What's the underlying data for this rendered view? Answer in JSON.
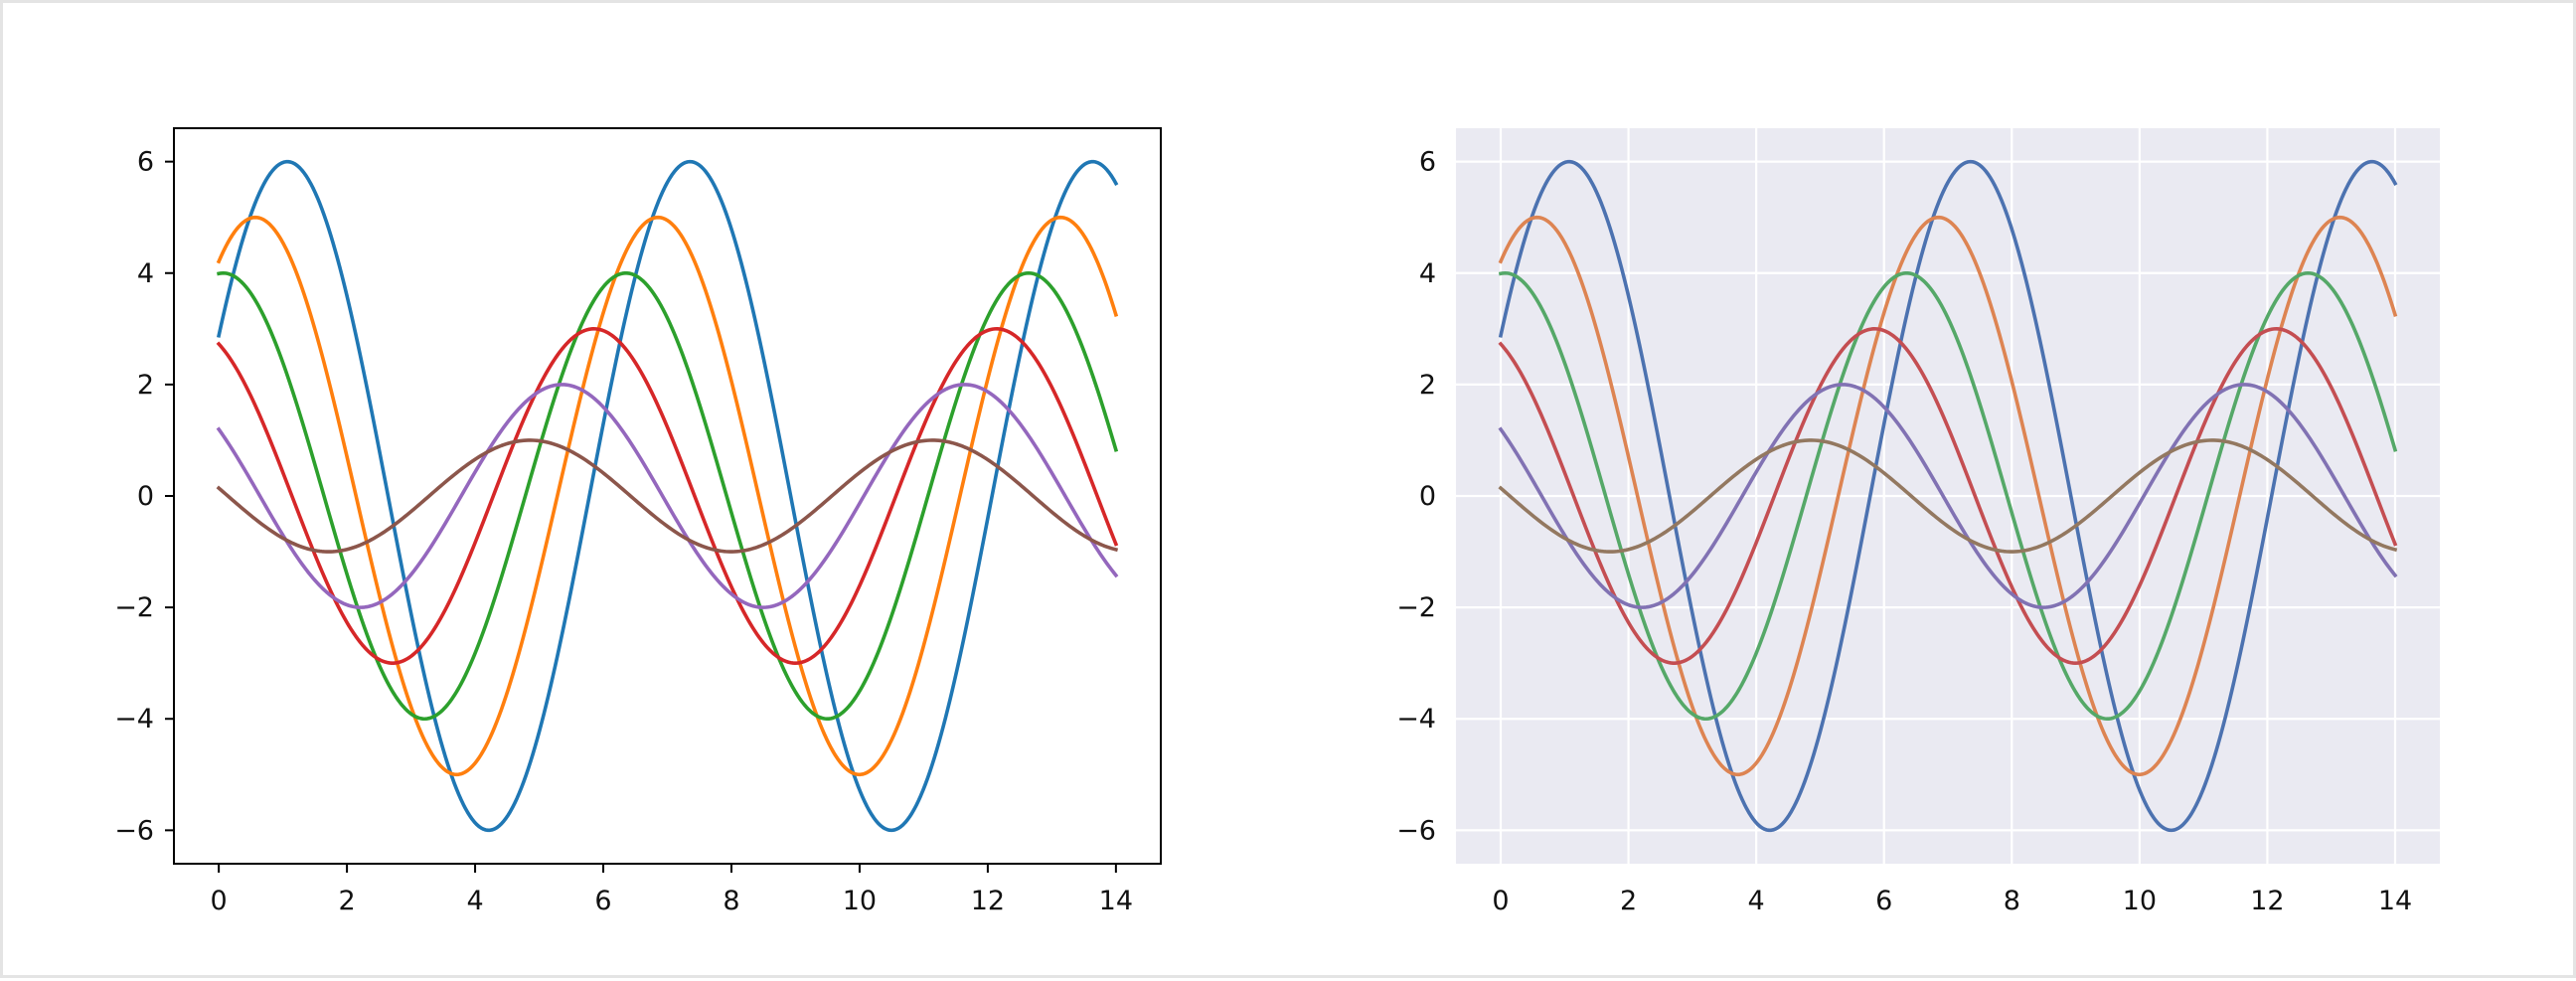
{
  "chart_data": [
    {
      "type": "line",
      "style": "classic",
      "frame": "black box",
      "background": "#ffffff",
      "grid": false,
      "xlim": [
        -0.7,
        14.7
      ],
      "ylim": [
        -6.6,
        6.6
      ],
      "xticks": [
        0,
        2,
        4,
        6,
        8,
        10,
        12,
        14
      ],
      "xtick_labels": [
        "0",
        "2",
        "4",
        "6",
        "8",
        "10",
        "12",
        "14"
      ],
      "yticks": [
        -6,
        -4,
        -2,
        0,
        2,
        4,
        6
      ],
      "ytick_labels": [
        "−6",
        "−4",
        "−2",
        "0",
        "2",
        "4",
        "6"
      ],
      "x_domain": [
        0,
        14
      ],
      "series": [
        {
          "formula": "sin(x + 0.5) * 6",
          "amplitude": 6,
          "phase": 0.5,
          "color": "#1f77b4"
        },
        {
          "formula": "sin(x + 1.0) * 5",
          "amplitude": 5,
          "phase": 1.0,
          "color": "#ff7f0e"
        },
        {
          "formula": "sin(x + 1.5) * 4",
          "amplitude": 4,
          "phase": 1.5,
          "color": "#2ca02c"
        },
        {
          "formula": "sin(x + 2.0) * 3",
          "amplitude": 3,
          "phase": 2.0,
          "color": "#d62728"
        },
        {
          "formula": "sin(x + 2.5) * 2",
          "amplitude": 2,
          "phase": 2.5,
          "color": "#9467bd"
        },
        {
          "formula": "sin(x + 3.0) * 1",
          "amplitude": 1,
          "phase": 3.0,
          "color": "#8c564b"
        }
      ]
    },
    {
      "type": "line",
      "style": "seaborn darkgrid",
      "frame": "none",
      "background": "#eaeaf2",
      "grid": true,
      "grid_color": "#ffffff",
      "xlim": [
        -0.7,
        14.7
      ],
      "ylim": [
        -6.6,
        6.6
      ],
      "xticks": [
        0,
        2,
        4,
        6,
        8,
        10,
        12,
        14
      ],
      "xtick_labels": [
        "0",
        "2",
        "4",
        "6",
        "8",
        "10",
        "12",
        "14"
      ],
      "yticks": [
        -6,
        -4,
        -2,
        0,
        2,
        4,
        6
      ],
      "ytick_labels": [
        "−6",
        "−4",
        "−2",
        "0",
        "2",
        "4",
        "6"
      ],
      "x_domain": [
        0,
        14
      ],
      "series": [
        {
          "formula": "sin(x + 0.5) * 6",
          "amplitude": 6,
          "phase": 0.5,
          "color": "#4c72b0"
        },
        {
          "formula": "sin(x + 1.0) * 5",
          "amplitude": 5,
          "phase": 1.0,
          "color": "#dd8452"
        },
        {
          "formula": "sin(x + 1.5) * 4",
          "amplitude": 4,
          "phase": 1.5,
          "color": "#55a868"
        },
        {
          "formula": "sin(x + 2.0) * 3",
          "amplitude": 3,
          "phase": 2.0,
          "color": "#c44e52"
        },
        {
          "formula": "sin(x + 2.5) * 2",
          "amplitude": 2,
          "phase": 2.5,
          "color": "#8172b3"
        },
        {
          "formula": "sin(x + 3.0) * 1",
          "amplitude": 1,
          "phase": 3.0,
          "color": "#937860"
        }
      ]
    }
  ]
}
